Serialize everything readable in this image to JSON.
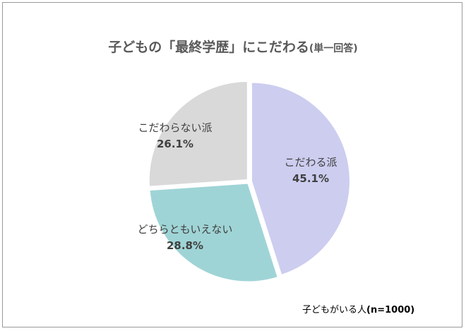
{
  "chart_data": {
    "type": "pie",
    "title": "子どもの「最終学歴」にこだわる",
    "subtitle": "(単一回答)",
    "slices": [
      {
        "label": "こだわる派",
        "value": 45.1,
        "value_label": "45.1%",
        "color": "#cdcdf0"
      },
      {
        "label": "どちらともいえない",
        "value": 28.8,
        "value_label": "28.8%",
        "color": "#9fd4d6"
      },
      {
        "label": "こだわらない派",
        "value": 26.1,
        "value_label": "26.1%",
        "color": "#d9d9d9"
      }
    ],
    "start_angle_deg": 0,
    "direction": "clockwise",
    "note_prefix": "子どもがいる人",
    "note_n": "(n=1000)"
  }
}
